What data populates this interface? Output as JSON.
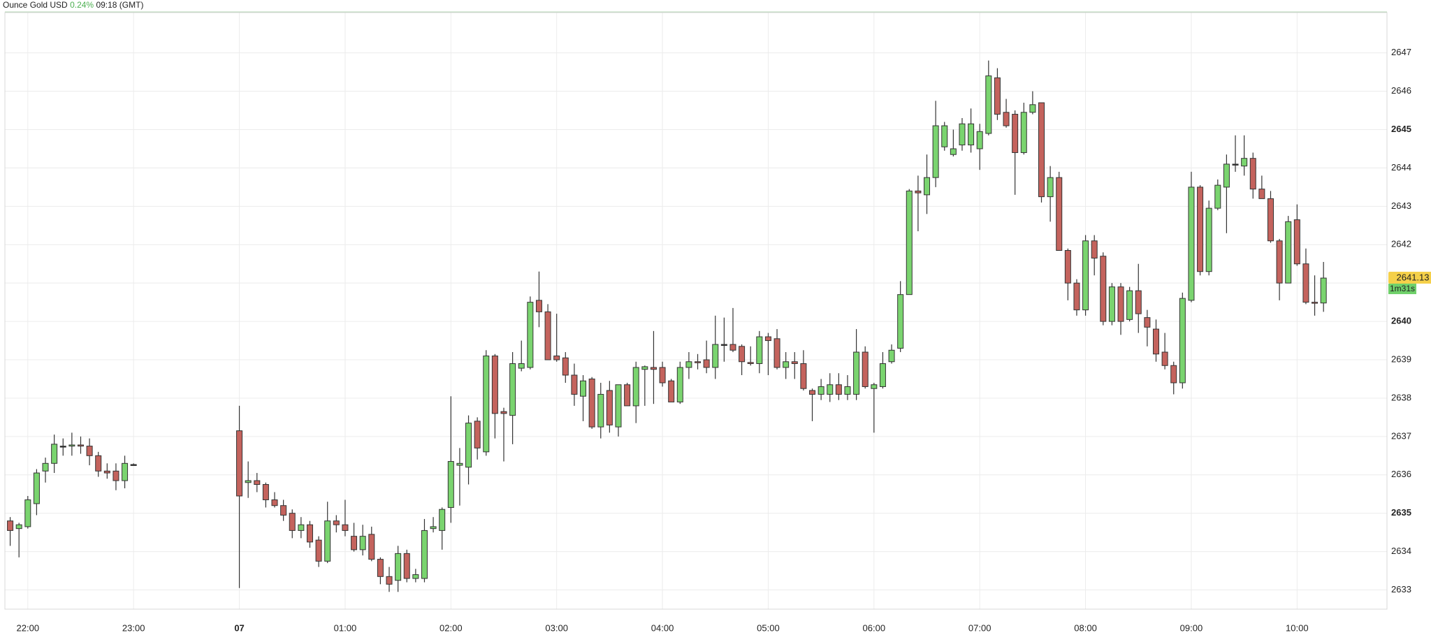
{
  "chart_data": {
    "type": "candlestick",
    "title": "Ounce Gold USD",
    "change": "0.24%",
    "time": "09:18 (GMT)",
    "last_price": 2641.13,
    "countdown": "1m31s",
    "up_color": "#7ad46f",
    "down_color": "#c4635d",
    "grid": true,
    "x": [
      "21:50",
      "21:55",
      "22:00",
      "22:05",
      "22:10",
      "22:15",
      "22:20",
      "22:25",
      "22:30",
      "22:35",
      "22:40",
      "22:45",
      "22:50",
      "22:55",
      "23:00",
      "00:00",
      "00:05",
      "00:10",
      "00:15",
      "00:20",
      "00:25",
      "00:30",
      "00:35",
      "00:40",
      "00:45",
      "00:50",
      "00:55",
      "01:00",
      "01:05",
      "01:10",
      "01:15",
      "01:20",
      "01:25",
      "01:30",
      "01:35",
      "01:40",
      "01:45",
      "01:50",
      "01:55",
      "02:00",
      "02:05",
      "02:10",
      "02:15",
      "02:20",
      "02:25",
      "02:30",
      "02:35",
      "02:40",
      "02:45",
      "02:50",
      "02:55",
      "03:00",
      "03:05",
      "03:10",
      "03:15",
      "03:20",
      "03:25",
      "03:30",
      "03:35",
      "03:40",
      "03:45",
      "03:50",
      "03:55",
      "04:00",
      "04:05",
      "04:10",
      "04:15",
      "04:20",
      "04:25",
      "04:30",
      "04:35",
      "04:40",
      "04:45",
      "04:50",
      "04:55",
      "05:00",
      "05:05",
      "05:10",
      "05:15",
      "05:20",
      "05:25",
      "05:30",
      "05:35",
      "05:40",
      "05:45",
      "05:50",
      "05:55",
      "06:00",
      "06:05",
      "06:10",
      "06:15",
      "06:20",
      "06:25",
      "06:30",
      "06:35",
      "06:40",
      "06:45",
      "06:50",
      "06:55",
      "07:00",
      "07:05",
      "07:10",
      "07:15",
      "07:20",
      "07:25",
      "07:30",
      "07:35",
      "07:40",
      "07:45",
      "07:50",
      "07:55",
      "08:00",
      "08:05",
      "08:10",
      "08:15",
      "08:20",
      "08:25",
      "08:30",
      "08:35",
      "08:40",
      "08:45",
      "08:50",
      "08:55",
      "09:00",
      "09:05",
      "09:10",
      "09:15",
      "09:20",
      "09:25",
      "09:30",
      "09:35",
      "09:40",
      "09:45",
      "09:50",
      "09:55",
      "10:00",
      "10:05",
      "10:10",
      "10:15"
    ],
    "open": [
      2634.8,
      2634.6,
      2634.65,
      2635.25,
      2636.1,
      2636.3,
      2636.75,
      2636.75,
      2636.78,
      2636.75,
      2636.5,
      2636.1,
      2636.1,
      2635.85,
      2636.27,
      2637.15,
      2635.8,
      2635.85,
      2635.75,
      2635.35,
      2635.2,
      2635.0,
      2634.55,
      2634.7,
      2634.3,
      2633.75,
      2634.8,
      2634.7,
      2634.4,
      2634.05,
      2634.45,
      2633.8,
      2633.35,
      2633.25,
      2633.95,
      2633.3,
      2633.3,
      2634.6,
      2634.55,
      2635.15,
      2636.25,
      2636.2,
      2637.4,
      2636.6,
      2639.1,
      2637.65,
      2637.55,
      2638.78,
      2638.8,
      2640.55,
      2640.25,
      2639.1,
      2639.05,
      2638.6,
      2638.05,
      2638.5,
      2637.25,
      2638.2,
      2637.25,
      2638.35,
      2637.8,
      2638.75,
      2638.8,
      2638.8,
      2638.45,
      2637.9,
      2638.8,
      2638.95,
      2639.0,
      2638.8,
      2639.4,
      2639.4,
      2639.35,
      2638.93,
      2638.9,
      2639.6,
      2639.55,
      2638.8,
      2638.95,
      2638.9,
      2638.2,
      2638.1,
      2638.1,
      2638.35,
      2638.1,
      2638.1,
      2639.2,
      2638.25,
      2638.3,
      2638.95,
      2639.3,
      2640.7,
      2643.4,
      2643.3,
      2643.75,
      2644.55,
      2644.35,
      2644.6,
      2644.6,
      2644.5,
      2644.9,
      2646.35,
      2645.45,
      2645.4,
      2644.4,
      2645.45,
      2645.7,
      2643.25,
      2643.75,
      2641.85,
      2641.0,
      2640.3,
      2642.1,
      2641.7,
      2640.0,
      2640.9,
      2640.05,
      2640.8,
      2640.1,
      2639.8,
      2639.2,
      2638.85,
      2638.4,
      2640.55,
      2643.5,
      2641.3,
      2642.95,
      2643.5,
      2644.1,
      2644.05,
      2644.25,
      2643.45,
      2643.2,
      2642.1,
      2641.0,
      2642.65,
      2641.5,
      2640.5,
      2640.48
    ],
    "high": [
      2634.9,
      2634.75,
      2635.45,
      2636.15,
      2636.45,
      2637.05,
      2636.95,
      2637.1,
      2637.0,
      2636.95,
      2636.6,
      2636.3,
      2636.3,
      2636.5,
      2636.3,
      2637.8,
      2636.35,
      2636.05,
      2635.8,
      2635.55,
      2635.35,
      2635.1,
      2634.9,
      2634.8,
      2634.4,
      2635.3,
      2634.95,
      2635.35,
      2634.75,
      2634.7,
      2634.65,
      2633.85,
      2633.6,
      2634.15,
      2634.05,
      2633.55,
      2634.85,
      2634.9,
      2635.15,
      2638.05,
      2636.7,
      2637.55,
      2637.5,
      2639.25,
      2639.15,
      2637.75,
      2639.2,
      2639.5,
      2640.65,
      2641.3,
      2640.45,
      2640.2,
      2639.2,
      2638.9,
      2638.6,
      2638.55,
      2638.4,
      2638.45,
      2638.35,
      2638.4,
      2638.95,
      2638.85,
      2639.75,
      2638.95,
      2638.5,
      2638.95,
      2639.2,
      2639.15,
      2639.5,
      2640.15,
      2640.1,
      2640.35,
      2639.4,
      2639.35,
      2639.75,
      2639.7,
      2639.8,
      2639.2,
      2639.2,
      2639.25,
      2638.25,
      2638.5,
      2638.65,
      2638.65,
      2638.6,
      2639.8,
      2639.35,
      2638.4,
      2639.2,
      2639.4,
      2641.05,
      2643.45,
      2643.8,
      2644.35,
      2645.75,
      2645.2,
      2645.0,
      2645.3,
      2645.55,
      2645.15,
      2646.8,
      2646.6,
      2645.8,
      2645.5,
      2645.7,
      2646.0,
      2645.7,
      2644.05,
      2643.9,
      2641.9,
      2641.1,
      2642.25,
      2642.25,
      2641.8,
      2641.0,
      2641.0,
      2640.9,
      2641.5,
      2640.3,
      2640.05,
      2639.7,
      2638.95,
      2640.75,
      2643.9,
      2643.55,
      2643.15,
      2643.7,
      2644.35,
      2644.85,
      2644.85,
      2644.4,
      2643.8,
      2643.4,
      2642.15,
      2642.75,
      2643.05,
      2641.9,
      2641.2,
      2641.55
    ],
    "low": [
      2634.15,
      2633.85,
      2634.6,
      2634.95,
      2635.8,
      2636.05,
      2636.5,
      2636.5,
      2636.55,
      2636.25,
      2635.95,
      2635.9,
      2635.6,
      2635.65,
      2636.25,
      2633.05,
      2635.4,
      2635.55,
      2635.15,
      2635.15,
      2634.8,
      2634.35,
      2634.35,
      2634.1,
      2633.6,
      2633.7,
      2634.5,
      2634.4,
      2634.0,
      2633.9,
      2633.75,
      2633.15,
      2632.95,
      2632.95,
      2633.2,
      2633.2,
      2633.2,
      2634.5,
      2634.05,
      2634.75,
      2635.2,
      2635.75,
      2636.4,
      2636.5,
      2636.95,
      2636.35,
      2636.8,
      2638.7,
      2638.75,
      2639.85,
      2639.0,
      2638.95,
      2638.4,
      2637.8,
      2637.4,
      2637.2,
      2636.95,
      2637.1,
      2637.0,
      2637.8,
      2637.35,
      2637.8,
      2637.85,
      2638.3,
      2637.9,
      2637.85,
      2638.5,
      2638.75,
      2638.65,
      2638.5,
      2638.95,
      2639.2,
      2638.6,
      2638.85,
      2638.65,
      2638.6,
      2638.75,
      2638.5,
      2638.5,
      2638.2,
      2637.4,
      2637.95,
      2637.9,
      2637.95,
      2637.95,
      2637.95,
      2638.25,
      2637.1,
      2638.25,
      2638.9,
      2639.2,
      2640.7,
      2642.35,
      2642.8,
      2643.5,
      2644.45,
      2644.3,
      2644.45,
      2644.4,
      2643.95,
      2644.85,
      2645.25,
      2645.05,
      2643.3,
      2644.35,
      2645.4,
      2643.1,
      2642.6,
      2641.85,
      2640.55,
      2640.15,
      2640.15,
      2641.2,
      2639.9,
      2639.9,
      2639.65,
      2640.0,
      2639.7,
      2639.35,
      2638.95,
      2638.75,
      2638.1,
      2638.25,
      2640.5,
      2641.2,
      2641.2,
      2642.9,
      2642.3,
      2643.9,
      2643.8,
      2643.2,
      2643.2,
      2642.05,
      2640.55,
      2641.0,
      2641.45,
      2640.45,
      2640.15,
      2640.25
    ],
    "close": [
      2634.55,
      2634.7,
      2635.35,
      2636.05,
      2636.3,
      2636.8,
      2636.75,
      2636.78,
      2636.75,
      2636.5,
      2636.1,
      2636.05,
      2635.85,
      2636.3,
      2636.27,
      2635.45,
      2635.85,
      2635.75,
      2635.35,
      2635.2,
      2634.95,
      2634.55,
      2634.7,
      2634.25,
      2633.75,
      2634.8,
      2634.7,
      2634.55,
      2634.05,
      2634.4,
      2633.8,
      2633.35,
      2633.15,
      2633.95,
      2633.3,
      2633.4,
      2634.55,
      2634.65,
      2635.1,
      2636.35,
      2636.3,
      2637.35,
      2636.7,
      2639.1,
      2637.6,
      2637.6,
      2638.9,
      2638.9,
      2640.5,
      2640.25,
      2639.0,
      2639.0,
      2638.6,
      2638.1,
      2638.45,
      2637.25,
      2638.1,
      2637.3,
      2638.35,
      2637.8,
      2638.8,
      2638.82,
      2638.75,
      2638.4,
      2637.9,
      2638.8,
      2638.95,
      2638.93,
      2638.8,
      2639.4,
      2639.4,
      2639.25,
      2638.95,
      2638.9,
      2639.6,
      2639.5,
      2638.8,
      2638.95,
      2638.9,
      2638.25,
      2638.1,
      2638.3,
      2638.35,
      2638.1,
      2638.3,
      2639.2,
      2638.3,
      2638.35,
      2638.9,
      2639.25,
      2640.7,
      2643.4,
      2643.35,
      2643.75,
      2645.1,
      2645.1,
      2644.5,
      2645.15,
      2645.15,
      2644.95,
      2646.4,
      2645.4,
      2645.1,
      2644.4,
      2645.45,
      2645.65,
      2643.25,
      2643.75,
      2641.85,
      2641.0,
      2640.3,
      2642.1,
      2641.65,
      2640.0,
      2640.9,
      2640.0,
      2640.8,
      2640.2,
      2639.85,
      2639.15,
      2638.85,
      2638.4,
      2640.6,
      2643.5,
      2641.3,
      2642.95,
      2643.55,
      2644.1,
      2644.1,
      2644.25,
      2643.45,
      2643.2,
      2642.1,
      2641.0,
      2642.6,
      2641.5,
      2640.5,
      2640.48,
      2641.13
    ],
    "xlim": [
      "21:47",
      "10:51"
    ],
    "xticks": [
      "22:00",
      "23:00",
      {
        "value": "00:00",
        "label": "07"
      },
      "01:00",
      "02:00",
      "03:00",
      "04:00",
      "05:00",
      "06:00",
      "07:00",
      "08:00",
      "09:00",
      "10:00"
    ],
    "ylim": [
      2632.5,
      2648.05
    ],
    "yticks": [
      2633,
      2634,
      2635,
      2636,
      2637,
      2638,
      2639,
      2640,
      2641,
      2642,
      2643,
      2644,
      2645,
      2646,
      2647
    ]
  }
}
